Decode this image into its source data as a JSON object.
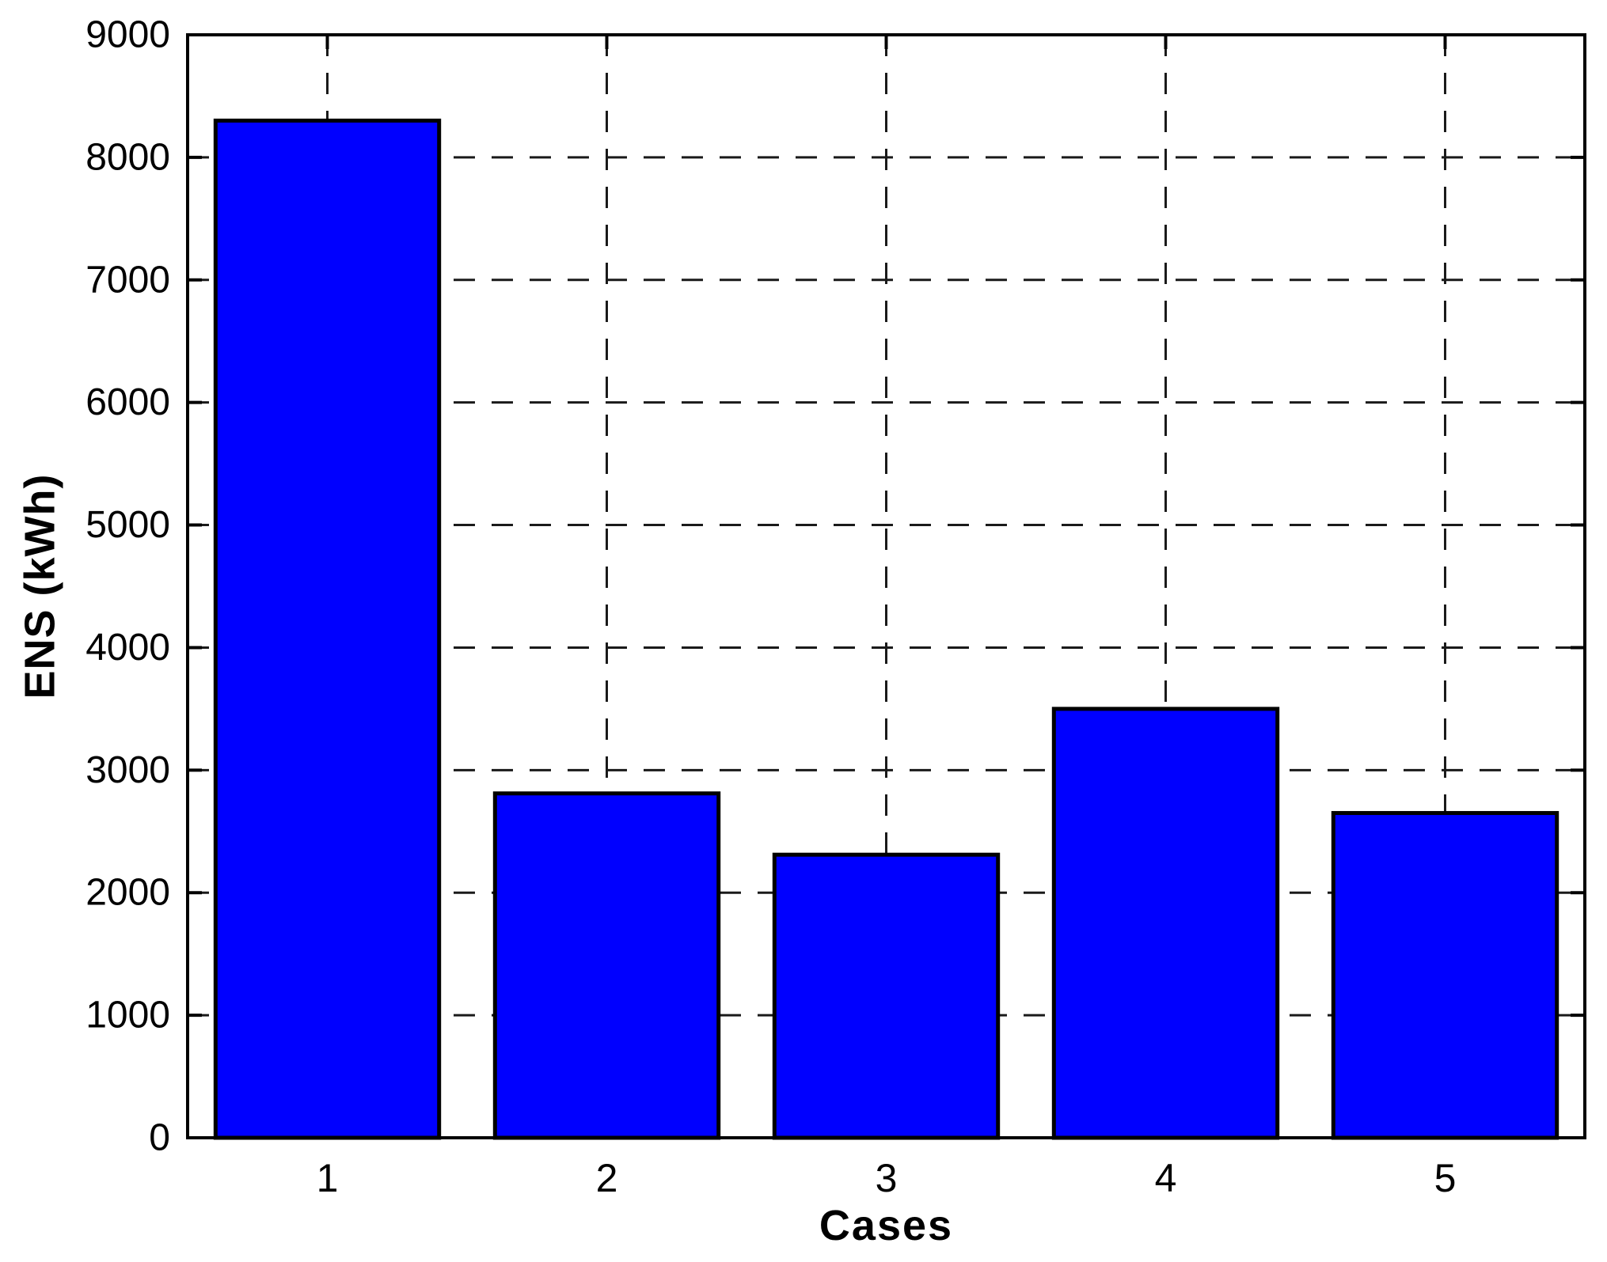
{
  "figure": {
    "background": "#ffffff"
  },
  "chart_data": {
    "type": "bar",
    "xlabel": "Cases",
    "ylabel": "ENS (kWh)",
    "categories": [
      "1",
      "2",
      "3",
      "4",
      "5"
    ],
    "values": [
      8300,
      2810,
      2310,
      3500,
      2650
    ],
    "series_name": "ENS",
    "xlim": [
      0.5,
      5.5
    ],
    "ylim": [
      0,
      9000
    ],
    "yticks": [
      0,
      1000,
      2000,
      3000,
      4000,
      5000,
      6000,
      7000,
      8000,
      9000
    ],
    "xticks": [
      1,
      2,
      3,
      4,
      5
    ],
    "bar_width_fraction": 0.8,
    "bar_color": "#0000ff",
    "bar_edge_color": "#000000",
    "axis_color": "#000000",
    "grid_on": true,
    "grid_style": "dashed",
    "grid_color": "#1a1a1a",
    "legend_position": "none"
  }
}
